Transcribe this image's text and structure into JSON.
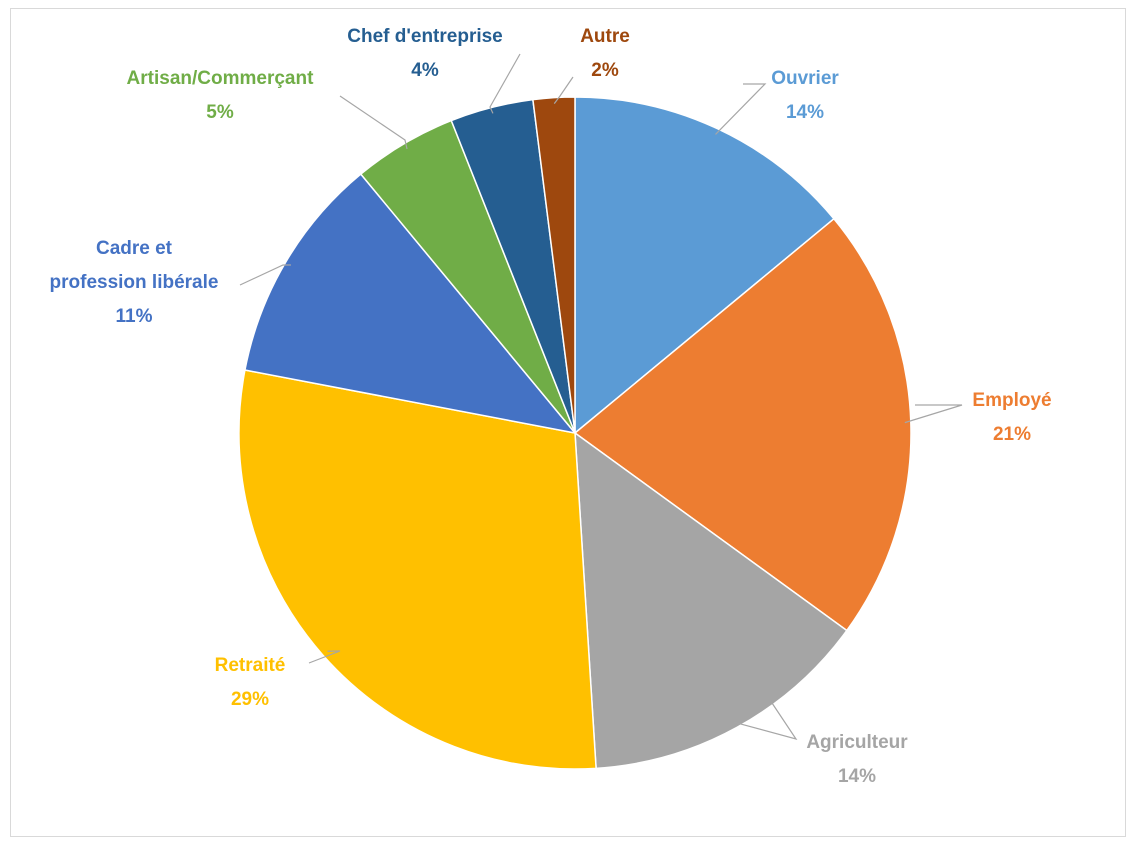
{
  "chart_data": {
    "type": "pie",
    "title": "",
    "slices": [
      {
        "label": "Ouvrier",
        "value": 14,
        "display": "14%",
        "color": "#5b9bd5"
      },
      {
        "label": "Employé",
        "value": 21,
        "display": "21%",
        "color": "#ed7d31"
      },
      {
        "label": "Agriculteur",
        "value": 14,
        "display": "14%",
        "color": "#a5a5a5"
      },
      {
        "label": "Retraité",
        "value": 29,
        "display": "29%",
        "color": "#ffc000"
      },
      {
        "label": "Cadre et profession libérale",
        "value": 11,
        "display": "11%",
        "color": "#4472c4"
      },
      {
        "label": "Artisan/Commerçant",
        "value": 5,
        "display": "5%",
        "color": "#70ad47"
      },
      {
        "label": "Chef d'entreprise",
        "value": 4,
        "display": "4%",
        "color": "#255e91"
      },
      {
        "label": "Autre",
        "value": 2,
        "display": "2%",
        "color": "#9e480e"
      }
    ],
    "start_angle_deg": 0,
    "direction": "clockwise",
    "legend": "none",
    "data_labels": "outside, category name and percentage"
  }
}
